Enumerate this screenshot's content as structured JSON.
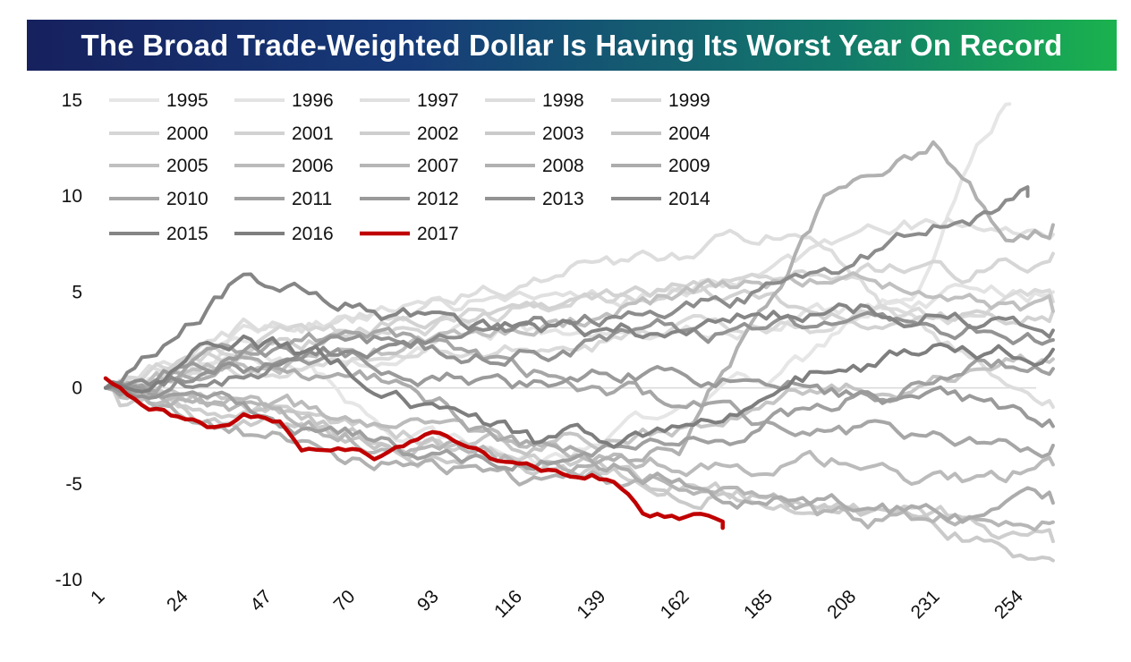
{
  "chart_data": {
    "type": "line",
    "title": "The Broad Trade-Weighted Dollar Is Having Its Worst Year On Record",
    "xlabel": "",
    "ylabel": "",
    "xlim": [
      1,
      264
    ],
    "ylim": [
      -10,
      15
    ],
    "x_ticks": [
      1,
      24,
      47,
      70,
      93,
      116,
      139,
      162,
      185,
      208,
      231,
      254
    ],
    "y_ticks": [
      15,
      10,
      5,
      0,
      -5,
      -10
    ],
    "legend_position": "top-left",
    "highlight_color": "#c00000",
    "series": [
      {
        "name": "1995",
        "color": "#e6e6e6",
        "end_day": 250,
        "points": [
          [
            1,
            0
          ],
          [
            40,
            2
          ],
          [
            80,
            -2
          ],
          [
            120,
            -4
          ],
          [
            150,
            -2
          ],
          [
            190,
            1
          ],
          [
            225,
            5
          ],
          [
            240,
            12
          ],
          [
            250,
            14.8
          ]
        ]
      },
      {
        "name": "1996",
        "color": "#e3e3e3",
        "end_day": 262,
        "points": [
          [
            1,
            0
          ],
          [
            40,
            1
          ],
          [
            80,
            2
          ],
          [
            120,
            3
          ],
          [
            160,
            3
          ],
          [
            200,
            4
          ],
          [
            240,
            5
          ],
          [
            262,
            5
          ]
        ]
      },
      {
        "name": "1997",
        "color": "#e0e0e0",
        "end_day": 262,
        "points": [
          [
            1,
            0
          ],
          [
            40,
            3
          ],
          [
            80,
            4
          ],
          [
            120,
            5
          ],
          [
            160,
            5
          ],
          [
            200,
            7
          ],
          [
            240,
            9
          ],
          [
            262,
            8
          ]
        ]
      },
      {
        "name": "1998",
        "color": "#dddddd",
        "end_day": 262,
        "points": [
          [
            1,
            0
          ],
          [
            40,
            3
          ],
          [
            80,
            4
          ],
          [
            120,
            6
          ],
          [
            160,
            7
          ],
          [
            190,
            8
          ],
          [
            230,
            2
          ],
          [
            262,
            -1
          ]
        ]
      },
      {
        "name": "1999",
        "color": "#dadada",
        "end_day": 262,
        "points": [
          [
            1,
            0
          ],
          [
            40,
            1
          ],
          [
            80,
            2
          ],
          [
            120,
            2
          ],
          [
            160,
            3
          ],
          [
            200,
            3
          ],
          [
            240,
            4
          ],
          [
            262,
            4.5
          ]
        ]
      },
      {
        "name": "2000",
        "color": "#d6d6d6",
        "end_day": 262,
        "points": [
          [
            1,
            0
          ],
          [
            40,
            2
          ],
          [
            80,
            3
          ],
          [
            120,
            4
          ],
          [
            160,
            5
          ],
          [
            200,
            6
          ],
          [
            240,
            6
          ],
          [
            262,
            7
          ]
        ]
      },
      {
        "name": "2001",
        "color": "#d2d2d2",
        "end_day": 262,
        "points": [
          [
            1,
            0
          ],
          [
            40,
            2
          ],
          [
            80,
            3
          ],
          [
            120,
            4
          ],
          [
            160,
            5
          ],
          [
            200,
            4
          ],
          [
            240,
            4
          ],
          [
            262,
            4
          ]
        ]
      },
      {
        "name": "2002",
        "color": "#cecece",
        "end_day": 262,
        "points": [
          [
            1,
            0
          ],
          [
            40,
            -1
          ],
          [
            80,
            -2
          ],
          [
            120,
            -4
          ],
          [
            160,
            -5
          ],
          [
            200,
            -6
          ],
          [
            240,
            -7
          ],
          [
            262,
            -8
          ]
        ]
      },
      {
        "name": "2003",
        "color": "#cacaca",
        "end_day": 262,
        "points": [
          [
            1,
            0
          ],
          [
            40,
            -2
          ],
          [
            80,
            -3
          ],
          [
            120,
            -4
          ],
          [
            160,
            -5
          ],
          [
            200,
            -6
          ],
          [
            240,
            -8
          ],
          [
            262,
            -9
          ]
        ]
      },
      {
        "name": "2004",
        "color": "#c5c5c5",
        "end_day": 262,
        "points": [
          [
            1,
            0
          ],
          [
            40,
            -1
          ],
          [
            80,
            -3
          ],
          [
            120,
            -3
          ],
          [
            160,
            -2
          ],
          [
            200,
            0
          ],
          [
            240,
            1
          ],
          [
            262,
            1.5
          ]
        ]
      },
      {
        "name": "2005",
        "color": "#c0c0c0",
        "end_day": 262,
        "points": [
          [
            1,
            0
          ],
          [
            40,
            1
          ],
          [
            80,
            2
          ],
          [
            120,
            3
          ],
          [
            160,
            5
          ],
          [
            200,
            6
          ],
          [
            240,
            5
          ],
          [
            262,
            4
          ]
        ]
      },
      {
        "name": "2006",
        "color": "#bbbbbb",
        "end_day": 262,
        "points": [
          [
            1,
            0
          ],
          [
            40,
            -1
          ],
          [
            80,
            -2
          ],
          [
            120,
            -3
          ],
          [
            160,
            -4
          ],
          [
            200,
            -4
          ],
          [
            240,
            -5
          ],
          [
            262,
            -4
          ]
        ]
      },
      {
        "name": "2007",
        "color": "#b6b6b6",
        "end_day": 262,
        "points": [
          [
            1,
            0
          ],
          [
            40,
            -1
          ],
          [
            80,
            -3
          ],
          [
            120,
            -4
          ],
          [
            160,
            -5
          ],
          [
            200,
            -7
          ],
          [
            240,
            -7
          ],
          [
            262,
            -7
          ]
        ]
      },
      {
        "name": "2008",
        "color": "#b1b1b1",
        "end_day": 262,
        "points": [
          [
            1,
            0
          ],
          [
            40,
            -2
          ],
          [
            80,
            -4
          ],
          [
            120,
            -5
          ],
          [
            160,
            -3
          ],
          [
            200,
            10
          ],
          [
            230,
            13
          ],
          [
            250,
            8
          ],
          [
            262,
            8.5
          ]
        ]
      },
      {
        "name": "2009",
        "color": "#acacac",
        "end_day": 262,
        "points": [
          [
            1,
            0
          ],
          [
            40,
            2
          ],
          [
            80,
            0
          ],
          [
            120,
            -3
          ],
          [
            160,
            -5
          ],
          [
            200,
            -6
          ],
          [
            240,
            -7
          ],
          [
            262,
            -6
          ]
        ]
      },
      {
        "name": "2010",
        "color": "#a6a6a6",
        "end_day": 262,
        "points": [
          [
            1,
            0
          ],
          [
            40,
            2
          ],
          [
            80,
            3
          ],
          [
            120,
            1
          ],
          [
            160,
            -1
          ],
          [
            200,
            -2
          ],
          [
            240,
            -3
          ],
          [
            262,
            -3
          ]
        ]
      },
      {
        "name": "2011",
        "color": "#a0a0a0",
        "end_day": 262,
        "points": [
          [
            1,
            0
          ],
          [
            40,
            -1
          ],
          [
            80,
            -3
          ],
          [
            120,
            -4
          ],
          [
            160,
            -3
          ],
          [
            200,
            -1
          ],
          [
            240,
            1
          ],
          [
            262,
            1
          ]
        ]
      },
      {
        "name": "2012",
        "color": "#9a9a9a",
        "end_day": 262,
        "points": [
          [
            1,
            0
          ],
          [
            40,
            2
          ],
          [
            80,
            1
          ],
          [
            120,
            0
          ],
          [
            160,
            1
          ],
          [
            200,
            0
          ],
          [
            240,
            -1
          ],
          [
            262,
            -2
          ]
        ]
      },
      {
        "name": "2013",
        "color": "#939393",
        "end_day": 262,
        "points": [
          [
            1,
            0
          ],
          [
            40,
            1
          ],
          [
            80,
            2
          ],
          [
            120,
            2
          ],
          [
            160,
            3
          ],
          [
            200,
            3
          ],
          [
            240,
            3
          ],
          [
            262,
            2.5
          ]
        ]
      },
      {
        "name": "2014",
        "color": "#8c8c8c",
        "end_day": 255,
        "points": [
          [
            1,
            0
          ],
          [
            40,
            1
          ],
          [
            80,
            2
          ],
          [
            120,
            3
          ],
          [
            160,
            4
          ],
          [
            200,
            6
          ],
          [
            240,
            9
          ],
          [
            255,
            10
          ]
        ]
      },
      {
        "name": "2015",
        "color": "#858585",
        "end_day": 262,
        "points": [
          [
            1,
            0
          ],
          [
            40,
            6
          ],
          [
            80,
            4
          ],
          [
            120,
            3
          ],
          [
            160,
            3
          ],
          [
            200,
            4
          ],
          [
            230,
            4
          ],
          [
            262,
            3
          ]
        ]
      },
      {
        "name": "2016",
        "color": "#7e7e7e",
        "end_day": 262,
        "points": [
          [
            1,
            0
          ],
          [
            40,
            3
          ],
          [
            80,
            0
          ],
          [
            120,
            -3
          ],
          [
            160,
            -2
          ],
          [
            200,
            1
          ],
          [
            240,
            2
          ],
          [
            262,
            2
          ]
        ]
      },
      {
        "name": "2017",
        "color": "#c00000",
        "end_day": 171,
        "points": [
          [
            1,
            0.5
          ],
          [
            10,
            -0.8
          ],
          [
            20,
            -1.5
          ],
          [
            30,
            -2
          ],
          [
            40,
            -1.3
          ],
          [
            50,
            -2
          ],
          [
            55,
            -3
          ],
          [
            65,
            -3
          ],
          [
            75,
            -3.5
          ],
          [
            85,
            -3
          ],
          [
            93,
            -2.5
          ],
          [
            100,
            -3.5
          ],
          [
            110,
            -4
          ],
          [
            120,
            -4.5
          ],
          [
            130,
            -4.5
          ],
          [
            135,
            -4.5
          ],
          [
            145,
            -5.5
          ],
          [
            150,
            -6.5
          ],
          [
            160,
            -6.8
          ],
          [
            166,
            -6.7
          ],
          [
            171,
            -7.3
          ]
        ]
      }
    ]
  }
}
